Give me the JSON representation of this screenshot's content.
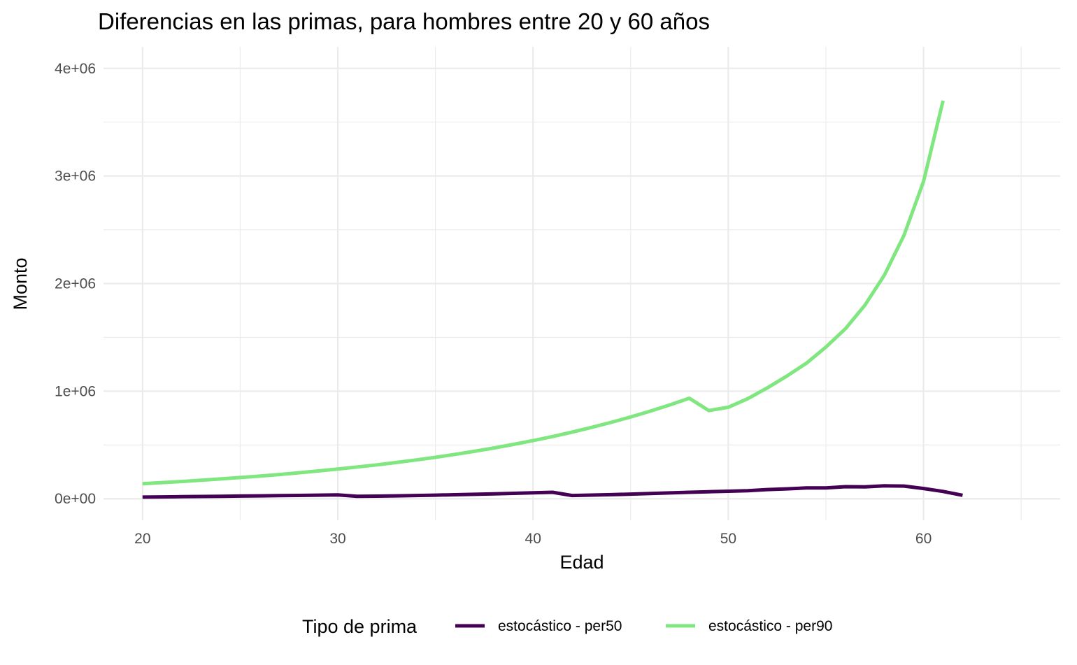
{
  "chart_data": {
    "type": "line",
    "title": "Diferencias en las primas, para hombres entre 20 y 60 años",
    "xlabel": "Edad",
    "ylabel": "Monto",
    "xlim": [
      18,
      67
    ],
    "ylim": [
      -200000,
      4200000
    ],
    "x_ticks": [
      20,
      30,
      40,
      50,
      60
    ],
    "x_tick_labels": [
      "20",
      "30",
      "40",
      "50",
      "60"
    ],
    "x_minor_ticks": [
      25,
      35,
      45,
      55,
      65
    ],
    "y_ticks": [
      0,
      1000000,
      2000000,
      3000000,
      4000000
    ],
    "y_tick_labels": [
      "0e+00",
      "1e+06",
      "2e+06",
      "3e+06",
      "4e+06"
    ],
    "y_minor_ticks": [
      500000,
      1500000,
      2500000,
      3500000
    ],
    "grid": true,
    "legend": {
      "title": "Tipo de prima",
      "position": "bottom"
    },
    "series": [
      {
        "name": "estocástico - per50",
        "color": "#440154",
        "x": [
          20,
          21,
          22,
          23,
          24,
          25,
          26,
          27,
          28,
          29,
          30,
          31,
          32,
          33,
          34,
          35,
          36,
          37,
          38,
          39,
          40,
          41,
          42,
          43,
          44,
          45,
          46,
          47,
          48,
          49,
          50,
          51,
          52,
          53,
          54,
          55,
          56,
          57,
          58,
          59,
          60,
          61,
          62
        ],
        "values": [
          15000,
          17000,
          19000,
          21000,
          23000,
          25000,
          27000,
          29000,
          31000,
          33000,
          35000,
          22000,
          24000,
          27000,
          30000,
          33000,
          37000,
          41000,
          45000,
          50000,
          55000,
          60000,
          30000,
          34000,
          38000,
          43000,
          48000,
          54000,
          60000,
          65000,
          70000,
          75000,
          85000,
          92000,
          100000,
          100000,
          112000,
          110000,
          120000,
          118000,
          95000,
          68000,
          32000
        ]
      },
      {
        "name": "estocástico - per90",
        "color": "#7fe680",
        "x": [
          20,
          21,
          22,
          23,
          24,
          25,
          26,
          27,
          28,
          29,
          30,
          31,
          32,
          33,
          34,
          35,
          36,
          37,
          38,
          39,
          40,
          41,
          42,
          43,
          44,
          45,
          46,
          47,
          48,
          49,
          50,
          51,
          52,
          53,
          54,
          55,
          56,
          57,
          58,
          59,
          60,
          61
        ],
        "values": [
          140000,
          150000,
          160000,
          172000,
          184000,
          197000,
          210000,
          225000,
          241000,
          258000,
          276000,
          295000,
          315000,
          337000,
          360000,
          385000,
          412000,
          441000,
          472000,
          505000,
          540000,
          578000,
          619000,
          663000,
          710000,
          760000,
          814000,
          872000,
          934000,
          820000,
          850000,
          930000,
          1030000,
          1140000,
          1260000,
          1410000,
          1580000,
          1800000,
          2080000,
          2450000,
          2950000,
          3700000
        ]
      }
    ]
  }
}
